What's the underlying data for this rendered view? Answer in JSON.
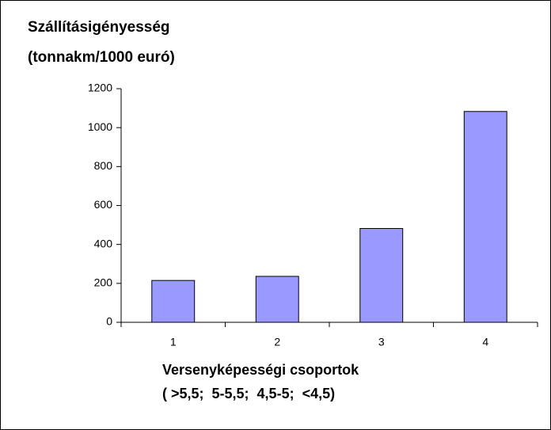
{
  "chart_data": {
    "type": "bar",
    "title": [
      "Szállításigényesség",
      "(tonnakm/1000 euró)"
    ],
    "x_label": [
      "Versenyképességi csoportok",
      "( >5,5;  5-5,5;  4,5-5;  <4,5)"
    ],
    "categories": [
      "1",
      "2",
      "3",
      "4"
    ],
    "values": [
      215,
      236,
      482,
      1083
    ],
    "color": "#9999ff",
    "ylim": [
      0,
      1200
    ],
    "yticks": [
      0,
      200,
      400,
      600,
      800,
      1000,
      1200
    ],
    "grid": false
  }
}
